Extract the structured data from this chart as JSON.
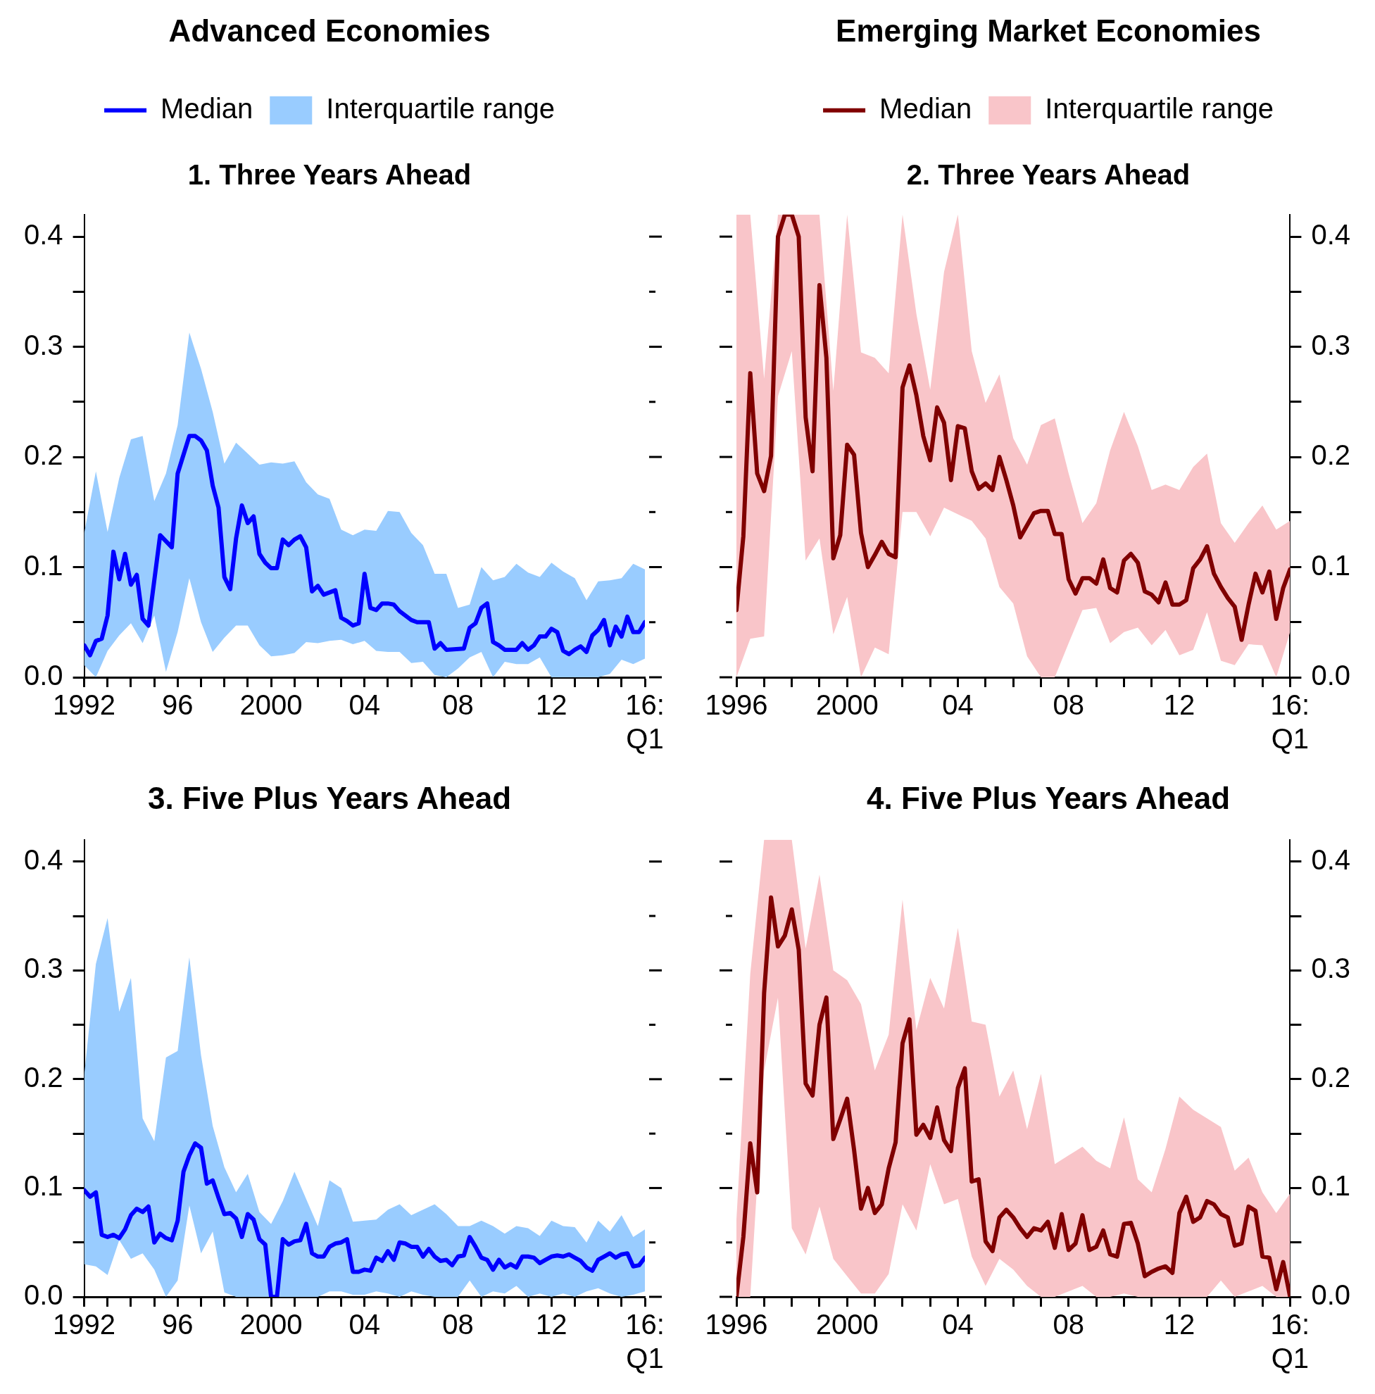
{
  "chart_data": [
    {
      "type": "line",
      "title": "Advanced Economies",
      "subtitle": "1. Three Years Ahead",
      "legend": "top",
      "marker": "none",
      "xlim": [
        1992,
        2016
      ],
      "xticks": [
        1992,
        {
          "value": 1993,
          "label": null
        },
        {
          "value": 1994,
          "label": null
        },
        {
          "value": 1995,
          "label": null
        },
        {
          "value": 1996,
          "label": "96"
        },
        {
          "value": 1997,
          "label": null
        },
        {
          "value": 1998,
          "label": null
        },
        {
          "value": 1999,
          "label": null
        },
        2000,
        {
          "value": 2001,
          "label": null
        },
        {
          "value": 2002,
          "label": null
        },
        {
          "value": 2003,
          "label": null
        },
        {
          "value": 2004,
          "label": "04"
        },
        {
          "value": 2005,
          "label": null
        },
        {
          "value": 2006,
          "label": null
        },
        {
          "value": 2007,
          "label": null
        },
        {
          "value": 2008,
          "label": "08"
        },
        {
          "value": 2009,
          "label": null
        },
        {
          "value": 2010,
          "label": null
        },
        {
          "value": 2011,
          "label": null
        },
        {
          "value": 2012,
          "label": "12"
        },
        {
          "value": 2013,
          "label": null
        },
        {
          "value": 2014,
          "label": null
        },
        {
          "value": 2015,
          "label": null
        },
        {
          "value": 2016,
          "label": "16:Q1"
        }
      ],
      "ylim": [
        0,
        0.42
      ],
      "yticks": [
        {
          "value": 0,
          "label": "0.0"
        },
        {
          "value": 0.05,
          "label": null
        },
        0.1,
        {
          "value": 0.15,
          "label": null
        },
        0.2,
        {
          "value": 0.25,
          "label": null
        },
        0.3,
        {
          "value": 0.35,
          "label": null
        },
        0.4
      ],
      "series": [
        {
          "name": "Median",
          "color": "#0000ff",
          "x": [
            1992,
            1992.25,
            1992.5,
            1992.75,
            1993,
            1993.25,
            1993.5,
            1993.75,
            1994,
            1994.25,
            1994.5,
            1994.75,
            1995.25,
            1995.75,
            1996,
            1996.5,
            1996.75,
            1997,
            1997.25,
            1997.5,
            1997.75,
            1998,
            1998.25,
            1998.5,
            1998.75,
            1999,
            1999.25,
            1999.5,
            1999.75,
            2000,
            2000.25,
            2000.5,
            2000.75,
            2001,
            2001.25,
            2001.5,
            2001.75,
            2002,
            2002.25,
            2002.75,
            2003,
            2003.25,
            2003.5,
            2003.75,
            2004,
            2004.25,
            2004.5,
            2004.75,
            2005,
            2005.25,
            2005.5,
            2006,
            2006.25,
            2006.75,
            2007,
            2007.25,
            2007.5,
            2008.25,
            2008.5,
            2008.75,
            2009,
            2009.25,
            2009.5,
            2009.75,
            2010,
            2010.5,
            2010.75,
            2011,
            2011.25,
            2011.5,
            2011.75,
            2012,
            2012.25,
            2012.5,
            2012.75,
            2013,
            2013.25,
            2013.5,
            2013.75,
            2014,
            2014.25,
            2014.5,
            2014.75,
            2015,
            2015.25,
            2015.5,
            2015.75,
            2016
          ],
          "values": [
            0.029,
            0.02,
            0.033,
            0.035,
            0.056,
            0.114,
            0.089,
            0.112,
            0.084,
            0.093,
            0.053,
            0.047,
            0.129,
            0.118,
            0.185,
            0.219,
            0.219,
            0.215,
            0.206,
            0.174,
            0.154,
            0.091,
            0.08,
            0.126,
            0.156,
            0.14,
            0.146,
            0.112,
            0.104,
            0.099,
            0.099,
            0.125,
            0.12,
            0.125,
            0.128,
            0.118,
            0.078,
            0.083,
            0.075,
            0.079,
            0.054,
            0.051,
            0.047,
            0.049,
            0.094,
            0.063,
            0.061,
            0.067,
            0.067,
            0.066,
            0.06,
            0.052,
            0.05,
            0.05,
            0.026,
            0.031,
            0.025,
            0.026,
            0.045,
            0.049,
            0.063,
            0.067,
            0.032,
            0.029,
            0.025,
            0.025,
            0.031,
            0.025,
            0.029,
            0.037,
            0.037,
            0.044,
            0.041,
            0.024,
            0.021,
            0.025,
            0.028,
            0.023,
            0.038,
            0.043,
            0.052,
            0.029,
            0.046,
            0.037,
            0.055,
            0.041,
            0.041,
            0.05
          ]
        },
        {
          "name": "Interquartile range",
          "type": "area",
          "color": "#99ccff",
          "x": [
            1992,
            1992.5,
            1993,
            1993.5,
            1994,
            1994.5,
            1995,
            1995.5,
            1996,
            1996.5,
            1997,
            1997.5,
            1998,
            1998.5,
            1999,
            1999.5,
            2000,
            2000.5,
            2001,
            2001.5,
            2002,
            2002.5,
            2003,
            2003.5,
            2004,
            2004.5,
            2005,
            2005.5,
            2006,
            2006.5,
            2007,
            2007.5,
            2008,
            2008.5,
            2009,
            2009.5,
            2010,
            2010.5,
            2011,
            2011.5,
            2012,
            2012.5,
            2013,
            2013.5,
            2014,
            2014.5,
            2015,
            2015.5,
            2016
          ],
          "values": [
            null,
            null,
            null,
            null,
            null,
            null,
            null,
            null,
            null,
            null,
            null,
            null,
            null,
            null,
            null,
            null,
            null,
            null,
            null,
            null,
            null,
            null,
            null,
            null,
            null,
            null,
            null,
            null,
            null,
            null,
            null,
            null,
            null,
            null,
            null,
            null,
            null,
            null,
            null,
            null,
            null,
            null,
            null,
            null,
            null,
            null,
            null,
            null,
            null
          ],
          "upper": [
            0.131,
            0.187,
            0.132,
            0.181,
            0.216,
            0.219,
            0.16,
            0.185,
            0.229,
            0.313,
            0.28,
            0.241,
            0.194,
            0.213,
            0.203,
            0.193,
            0.195,
            0.194,
            0.196,
            0.177,
            0.166,
            0.162,
            0.134,
            0.129,
            0.134,
            0.133,
            0.151,
            0.15,
            0.131,
            0.12,
            0.094,
            0.094,
            0.063,
            0.066,
            0.1,
            0.088,
            0.091,
            0.103,
            0.095,
            0.091,
            0.104,
            0.096,
            0.09,
            0.07,
            0.087,
            0.088,
            0.09,
            0.103,
            0.098
          ],
          "lower": [
            0.011,
            0,
            0.024,
            0.038,
            0.049,
            0.031,
            0.056,
            0.005,
            0.041,
            0.09,
            0.05,
            0.023,
            0.036,
            0.047,
            0.047,
            0.029,
            0.019,
            0.02,
            0.022,
            0.032,
            0.031,
            0.033,
            0.034,
            0.03,
            0.033,
            0.024,
            0.023,
            0.023,
            0.013,
            0.014,
            0.002,
            0,
            0.008,
            0.018,
            0.023,
            0,
            0.014,
            0.012,
            0.012,
            0.018,
            0,
            0,
            0,
            0,
            0,
            0.003,
            0.016,
            0.012,
            0.017
          ]
        }
      ]
    },
    {
      "type": "line",
      "title": "Emerging Market Economies",
      "subtitle": "2. Three Years Ahead",
      "legend": "top",
      "marker": "none",
      "xlim": [
        1996,
        2016
      ],
      "xticks": [
        1996,
        {
          "value": 1997,
          "label": null
        },
        {
          "value": 1998,
          "label": null
        },
        {
          "value": 1999,
          "label": null
        },
        2000,
        {
          "value": 2001,
          "label": null
        },
        {
          "value": 2002,
          "label": null
        },
        {
          "value": 2003,
          "label": null
        },
        {
          "value": 2004,
          "label": "04"
        },
        {
          "value": 2005,
          "label": null
        },
        {
          "value": 2006,
          "label": null
        },
        {
          "value": 2007,
          "label": null
        },
        {
          "value": 2008,
          "label": "08"
        },
        {
          "value": 2009,
          "label": null
        },
        {
          "value": 2010,
          "label": null
        },
        {
          "value": 2011,
          "label": null
        },
        {
          "value": 2012,
          "label": "12"
        },
        {
          "value": 2013,
          "label": null
        },
        {
          "value": 2014,
          "label": null
        },
        {
          "value": 2015,
          "label": null
        },
        {
          "value": 2016,
          "label": "16:Q1"
        }
      ],
      "y2lim": [
        0,
        0.42
      ],
      "y2ticks": [
        {
          "value": 0,
          "label": "0.0"
        },
        {
          "value": 0.05,
          "label": null
        },
        0.1,
        {
          "value": 0.15,
          "label": null
        },
        0.2,
        {
          "value": 0.25,
          "label": null
        },
        0.3,
        {
          "value": 0.35,
          "label": null
        },
        0.4
      ],
      "series": [
        {
          "name": "Median",
          "color": "#800000",
          "axis": "y2",
          "x": [
            1996,
            1996.25,
            1996.5,
            1996.75,
            1997,
            1997.25,
            1997.5,
            1997.75,
            1998,
            1998.25,
            1998.5,
            1998.75,
            1999,
            1999.25,
            1999.5,
            1999.75,
            2000,
            2000.25,
            2000.5,
            2000.75,
            2001,
            2001.25,
            2001.5,
            2001.75,
            2002,
            2002.25,
            2002.5,
            2002.75,
            2003,
            2003.25,
            2003.5,
            2003.75,
            2004,
            2004.25,
            2004.5,
            2004.75,
            2005,
            2005.25,
            2005.5,
            2005.75,
            2006,
            2006.25,
            2006.5,
            2006.75,
            2007,
            2007.25,
            2007.5,
            2007.75,
            2008,
            2008.25,
            2008.5,
            2008.75,
            2009,
            2009.25,
            2009.5,
            2009.75,
            2010,
            2010.25,
            2010.5,
            2010.75,
            2011,
            2011.25,
            2011.5,
            2011.75,
            2012,
            2012.25,
            2012.5,
            2012.75,
            2013,
            2013.25,
            2013.5,
            2013.75,
            2014,
            2014.25,
            2014.5,
            2014.75,
            2015,
            2015.25,
            2015.5,
            2015.75,
            2016
          ],
          "values": [
            0.061,
            0.128,
            0.276,
            0.185,
            0.169,
            0.201,
            0.4,
            0.42,
            0.42,
            0.4,
            0.236,
            0.187,
            0.356,
            0.29,
            0.108,
            0.129,
            0.211,
            0.202,
            0.131,
            0.1,
            0.111,
            0.123,
            0.112,
            0.109,
            0.263,
            0.283,
            0.256,
            0.219,
            0.197,
            0.245,
            0.231,
            0.179,
            0.228,
            0.226,
            0.187,
            0.171,
            0.176,
            0.17,
            0.2,
            0.179,
            0.156,
            0.127,
            0.138,
            0.149,
            0.151,
            0.151,
            0.13,
            0.13,
            0.089,
            0.076,
            0.09,
            0.09,
            0.085,
            0.107,
            0.081,
            0.077,
            0.106,
            0.112,
            0.104,
            0.078,
            0.075,
            0.068,
            0.086,
            0.066,
            0.066,
            0.07,
            0.099,
            0.107,
            0.119,
            0.094,
            0.082,
            0.072,
            0.064,
            0.034,
            0.066,
            0.094,
            0.077,
            0.096,
            0.053,
            0.081,
            0.098
          ]
        },
        {
          "name": "Interquartile range",
          "type": "area",
          "color": "#f9c5c9",
          "axis": "y2",
          "x": [
            1996,
            1996.5,
            1997,
            1997.5,
            1998,
            1998.5,
            1999,
            1999.5,
            2000,
            2000.5,
            2001,
            2001.5,
            2002,
            2002.5,
            2003,
            2003.5,
            2004,
            2004.5,
            2005,
            2005.5,
            2006,
            2006.5,
            2007,
            2007.5,
            2008,
            2008.5,
            2009,
            2009.5,
            2010,
            2010.5,
            2011,
            2011.5,
            2012,
            2012.5,
            2013,
            2013.5,
            2014,
            2014.5,
            2015,
            2015.5,
            2016
          ],
          "values": [
            null,
            null,
            null,
            null,
            null,
            null,
            null,
            null,
            null,
            null,
            null,
            null,
            null,
            null,
            null,
            null,
            null,
            null,
            null,
            null,
            null,
            null,
            null,
            null,
            null,
            null,
            null,
            null,
            null,
            null,
            null,
            null,
            null,
            null,
            null,
            null,
            null,
            null,
            null,
            null,
            null
          ],
          "upper": [
            0.42,
            0.42,
            0.271,
            0.42,
            0.42,
            0.42,
            0.42,
            0.26,
            0.42,
            0.295,
            0.29,
            0.276,
            0.42,
            0.33,
            0.261,
            0.368,
            0.42,
            0.296,
            0.249,
            0.275,
            0.217,
            0.193,
            0.229,
            0.235,
            0.185,
            0.14,
            0.158,
            0.206,
            0.241,
            0.21,
            0.17,
            0.175,
            0.17,
            0.191,
            0.203,
            0.14,
            0.122,
            0.14,
            0.156,
            0.134,
            0.142
          ],
          "lower": [
            0,
            0.035,
            0.037,
            0.255,
            0.296,
            0.106,
            0.126,
            0.039,
            0.073,
            0,
            0.027,
            0.021,
            0.15,
            0.15,
            0.128,
            0.154,
            0.148,
            0.142,
            0.126,
            0.082,
            0.067,
            0.019,
            0,
            0,
            0.031,
            0.061,
            0.063,
            0.031,
            0.041,
            0.045,
            0.029,
            0.043,
            0.02,
            0.025,
            0.059,
            0.015,
            0.011,
            0.03,
            0.029,
            0,
            0.041
          ]
        }
      ]
    },
    {
      "type": "line",
      "title": "3. Five Plus Years Ahead",
      "legend": false,
      "marker": "none",
      "xlim": [
        1992,
        2016
      ],
      "xticks": [
        1992,
        {
          "value": 1993,
          "label": null
        },
        {
          "value": 1994,
          "label": null
        },
        {
          "value": 1995,
          "label": null
        },
        {
          "value": 1996,
          "label": "96"
        },
        {
          "value": 1997,
          "label": null
        },
        {
          "value": 1998,
          "label": null
        },
        {
          "value": 1999,
          "label": null
        },
        2000,
        {
          "value": 2001,
          "label": null
        },
        {
          "value": 2002,
          "label": null
        },
        {
          "value": 2003,
          "label": null
        },
        {
          "value": 2004,
          "label": "04"
        },
        {
          "value": 2005,
          "label": null
        },
        {
          "value": 2006,
          "label": null
        },
        {
          "value": 2007,
          "label": null
        },
        {
          "value": 2008,
          "label": "08"
        },
        {
          "value": 2009,
          "label": null
        },
        {
          "value": 2010,
          "label": null
        },
        {
          "value": 2011,
          "label": null
        },
        {
          "value": 2012,
          "label": "12"
        },
        {
          "value": 2013,
          "label": null
        },
        {
          "value": 2014,
          "label": null
        },
        {
          "value": 2015,
          "label": null
        },
        {
          "value": 2016,
          "label": "16:Q1"
        }
      ],
      "ylim": [
        0,
        0.42
      ],
      "yticks": [
        {
          "value": 0,
          "label": "0.0"
        },
        {
          "value": 0.05,
          "label": null
        },
        0.1,
        {
          "value": 0.15,
          "label": null
        },
        0.2,
        {
          "value": 0.25,
          "label": null
        },
        0.3,
        {
          "value": 0.35,
          "label": null
        },
        0.4
      ],
      "series": [
        {
          "color": "#0000ff",
          "x": [
            1992,
            1992.25,
            1992.5,
            1992.75,
            1993,
            1993.25,
            1993.5,
            1993.75,
            1994,
            1994.25,
            1994.5,
            1994.75,
            1995,
            1995.25,
            1995.5,
            1995.75,
            1996,
            1996.25,
            1996.5,
            1996.75,
            1997,
            1997.25,
            1997.5,
            1997.75,
            1998,
            1998.25,
            1998.5,
            1998.75,
            1999,
            1999.25,
            1999.5,
            1999.75,
            2000,
            2000.25,
            2000.5,
            2000.75,
            2001,
            2001.25,
            2001.5,
            2001.75,
            2002,
            2002.25,
            2002.5,
            2002.75,
            2003,
            2003.25,
            2003.5,
            2003.75,
            2004,
            2004.25,
            2004.5,
            2004.75,
            2005,
            2005.25,
            2005.5,
            2005.75,
            2006,
            2006.25,
            2006.5,
            2006.75,
            2007,
            2007.25,
            2007.5,
            2007.75,
            2008,
            2008.25,
            2008.5,
            2008.75,
            2009,
            2009.25,
            2009.5,
            2009.75,
            2010,
            2010.25,
            2010.5,
            2010.75,
            2011,
            2011.25,
            2011.5,
            2011.75,
            2012,
            2012.25,
            2012.5,
            2012.75,
            2013,
            2013.25,
            2013.5,
            2013.75,
            2014,
            2014.25,
            2014.5,
            2014.75,
            2015,
            2015.25,
            2015.5,
            2015.75,
            2016
          ],
          "values": [
            0.098,
            0.092,
            0.096,
            0.057,
            0.055,
            0.057,
            0.054,
            0.062,
            0.075,
            0.081,
            0.078,
            0.083,
            0.05,
            0.058,
            0.054,
            0.052,
            0.07,
            0.115,
            0.13,
            0.141,
            0.137,
            0.104,
            0.107,
            0.091,
            0.076,
            0.077,
            0.072,
            0.055,
            0.076,
            0.071,
            0.053,
            0.048,
            0,
            0,
            0.053,
            0.048,
            0.051,
            0.052,
            0.067,
            0.04,
            0.037,
            0.037,
            0.046,
            0.049,
            0.05,
            0.053,
            0.023,
            0.023,
            0.025,
            0.024,
            0.036,
            0.033,
            0.042,
            0.034,
            0.05,
            0.049,
            0.046,
            0.046,
            0.037,
            0.044,
            0.037,
            0.033,
            0.034,
            0.029,
            0.037,
            0.038,
            0.055,
            0.046,
            0.036,
            0.034,
            0.025,
            0.034,
            0.027,
            0.03,
            0.027,
            0.037,
            0.037,
            0.036,
            0.031,
            0.034,
            0.037,
            0.038,
            0.037,
            0.039,
            0.036,
            0.033,
            0.027,
            0.024,
            0.034,
            0.037,
            0.04,
            0.036,
            0.039,
            0.04,
            0.028,
            0.029,
            0.036
          ]
        },
        {
          "type": "area",
          "color": "#99ccff",
          "x": [
            1992,
            1992.5,
            1993,
            1993.5,
            1994,
            1994.5,
            1995,
            1995.5,
            1996,
            1996.5,
            1997,
            1997.5,
            1998,
            1998.5,
            1999,
            1999.5,
            2000,
            2000.5,
            2001,
            2001.5,
            2002,
            2002.5,
            2003,
            2003.5,
            2004,
            2004.5,
            2005,
            2005.5,
            2006,
            2006.5,
            2007,
            2007.5,
            2008,
            2008.5,
            2009,
            2009.5,
            2010,
            2010.5,
            2011,
            2011.5,
            2012,
            2012.5,
            2013,
            2013.5,
            2014,
            2014.5,
            2015,
            2015.5,
            2016
          ],
          "values": [
            null,
            null,
            null,
            null,
            null,
            null,
            null,
            null,
            null,
            null,
            null,
            null,
            null,
            null,
            null,
            null,
            null,
            null,
            null,
            null,
            null,
            null,
            null,
            null,
            null,
            null,
            null,
            null,
            null,
            null,
            null,
            null,
            null,
            null,
            null,
            null,
            null,
            null,
            null,
            null,
            null,
            null,
            null,
            null,
            null,
            null,
            null,
            null,
            null
          ],
          "upper": [
            0.204,
            0.306,
            0.348,
            0.262,
            0.293,
            0.164,
            0.143,
            0.22,
            0.226,
            0.312,
            0.222,
            0.157,
            0.119,
            0.096,
            0.113,
            0.078,
            0.067,
            0.088,
            0.115,
            0.09,
            0.065,
            0.107,
            0.1,
            0.069,
            0.07,
            0.071,
            0.08,
            0.085,
            0.075,
            0.08,
            0.085,
            0.076,
            0.065,
            0.065,
            0.07,
            0.065,
            0.058,
            0.065,
            0.063,
            0.056,
            0.07,
            0.065,
            0.064,
            0.05,
            0.07,
            0.06,
            0.075,
            0.055,
            0.062
          ],
          "lower": [
            0.03,
            0.028,
            0.02,
            0.052,
            0.035,
            0.04,
            0.025,
            0,
            0.015,
            0.084,
            0.04,
            0.06,
            0.004,
            0,
            0,
            0,
            0,
            0,
            0,
            0,
            0,
            0.005,
            0.005,
            0.002,
            0.002,
            0.005,
            0.003,
            0,
            0.005,
            0.002,
            0,
            0,
            0,
            0.015,
            0,
            0.005,
            0.003,
            0.01,
            0,
            0.003,
            0,
            0.003,
            0,
            0.005,
            0.008,
            0.003,
            0,
            0.002,
            0.005
          ]
        }
      ]
    },
    {
      "type": "line",
      "title": "4. Five Plus Years Ahead",
      "legend": false,
      "marker": "none",
      "xlim": [
        1996,
        2016
      ],
      "xticks": [
        1996,
        {
          "value": 1997,
          "label": null
        },
        {
          "value": 1998,
          "label": null
        },
        {
          "value": 1999,
          "label": null
        },
        2000,
        {
          "value": 2001,
          "label": null
        },
        {
          "value": 2002,
          "label": null
        },
        {
          "value": 2003,
          "label": null
        },
        {
          "value": 2004,
          "label": "04"
        },
        {
          "value": 2005,
          "label": null
        },
        {
          "value": 2006,
          "label": null
        },
        {
          "value": 2007,
          "label": null
        },
        {
          "value": 2008,
          "label": "08"
        },
        {
          "value": 2009,
          "label": null
        },
        {
          "value": 2010,
          "label": null
        },
        {
          "value": 2011,
          "label": null
        },
        {
          "value": 2012,
          "label": "12"
        },
        {
          "value": 2013,
          "label": null
        },
        {
          "value": 2014,
          "label": null
        },
        {
          "value": 2015,
          "label": null
        },
        {
          "value": 2016,
          "label": "16:Q1"
        }
      ],
      "y2lim": [
        0,
        0.42
      ],
      "y2ticks": [
        {
          "value": 0,
          "label": "0.0"
        },
        {
          "value": 0.05,
          "label": null
        },
        0.1,
        {
          "value": 0.15,
          "label": null
        },
        0.2,
        {
          "value": 0.25,
          "label": null
        },
        0.3,
        {
          "value": 0.35,
          "label": null
        },
        0.4
      ],
      "series": [
        {
          "color": "#800000",
          "axis": "y2",
          "x": [
            1996,
            1996.25,
            1996.5,
            1996.75,
            1997,
            1997.25,
            1997.5,
            1997.75,
            1998,
            1998.25,
            1998.5,
            1998.75,
            1999,
            1999.25,
            1999.5,
            1999.75,
            2000,
            2000.25,
            2000.5,
            2000.75,
            2001,
            2001.25,
            2001.5,
            2001.75,
            2002,
            2002.25,
            2002.5,
            2002.75,
            2003,
            2003.25,
            2003.5,
            2003.75,
            2004,
            2004.25,
            2004.5,
            2004.75,
            2005,
            2005.25,
            2005.5,
            2005.75,
            2006,
            2006.25,
            2006.5,
            2006.75,
            2007,
            2007.25,
            2007.5,
            2007.75,
            2008,
            2008.25,
            2008.5,
            2008.75,
            2009,
            2009.25,
            2009.5,
            2009.75,
            2010,
            2010.25,
            2010.5,
            2010.75,
            2011,
            2011.25,
            2011.5,
            2011.75,
            2012,
            2012.25,
            2012.5,
            2012.75,
            2013,
            2013.25,
            2013.5,
            2013.75,
            2014,
            2014.25,
            2014.5,
            2014.75,
            2015,
            2015.25,
            2015.5,
            2015.75,
            2016
          ],
          "values": [
            0,
            0.055,
            0.141,
            0.096,
            0.279,
            0.367,
            0.322,
            0.332,
            0.356,
            0.319,
            0.196,
            0.185,
            0.25,
            0.275,
            0.145,
            0.163,
            0.182,
            0.135,
            0.081,
            0.1,
            0.077,
            0.085,
            0.118,
            0.142,
            0.233,
            0.255,
            0.149,
            0.158,
            0.146,
            0.174,
            0.144,
            0.134,
            0.192,
            0.21,
            0.106,
            0.108,
            0.051,
            0.042,
            0.073,
            0.08,
            0.073,
            0.063,
            0.055,
            0.063,
            0.061,
            0.069,
            0.045,
            0.076,
            0.043,
            0.049,
            0.075,
            0.043,
            0.046,
            0.061,
            0.039,
            0.037,
            0.067,
            0.068,
            0.049,
            0.019,
            0.023,
            0.026,
            0.028,
            0.022,
            0.077,
            0.092,
            0.069,
            0.073,
            0.088,
            0.085,
            0.076,
            0.073,
            0.047,
            0.049,
            0.083,
            0.079,
            0.037,
            0.036,
            0.007,
            0.032,
            0
          ]
        },
        {
          "type": "area",
          "color": "#f9c5c9",
          "axis": "y2",
          "x": [
            1996,
            1996.5,
            1997,
            1997.5,
            1998,
            1998.5,
            1999,
            1999.5,
            2000,
            2000.5,
            2001,
            2001.5,
            2002,
            2002.5,
            2003,
            2003.5,
            2004,
            2004.5,
            2005,
            2005.5,
            2006,
            2006.5,
            2007,
            2007.5,
            2008,
            2008.5,
            2009,
            2009.5,
            2010,
            2010.5,
            2011,
            2011.5,
            2012,
            2012.5,
            2013,
            2013.5,
            2014,
            2014.5,
            2015,
            2015.5,
            2016
          ],
          "values": [
            null,
            null,
            null,
            null,
            null,
            null,
            null,
            null,
            null,
            null,
            null,
            null,
            null,
            null,
            null,
            null,
            null,
            null,
            null,
            null,
            null,
            null,
            null,
            null,
            null,
            null,
            null,
            null,
            null,
            null,
            null,
            null,
            null,
            null,
            null,
            null,
            null,
            null,
            null,
            null,
            null
          ],
          "upper": [
            0.071,
            0.297,
            0.42,
            0.42,
            0.42,
            0.32,
            0.388,
            0.3,
            0.291,
            0.269,
            0.208,
            0.241,
            0.365,
            0.245,
            0.293,
            0.265,
            0.339,
            0.253,
            0.25,
            0.184,
            0.208,
            0.154,
            0.205,
            0.122,
            0.13,
            0.138,
            0.125,
            0.118,
            0.165,
            0.108,
            0.096,
            0.136,
            0.184,
            0.172,
            0.164,
            0.156,
            0.116,
            0.128,
            0.096,
            0.077,
            0.095
          ],
          "lower": [
            0,
            0,
            0.208,
            0.275,
            0.063,
            0.039,
            0.083,
            0.035,
            0.019,
            0.003,
            0.003,
            0.021,
            0.085,
            0.061,
            0.122,
            0.085,
            0.09,
            0.037,
            0.01,
            0.035,
            0.025,
            0.01,
            0,
            0,
            0.005,
            0.01,
            0,
            0,
            0.003,
            0,
            0,
            0,
            0,
            0,
            0,
            0.015,
            0,
            0.005,
            0.01,
            0,
            0
          ]
        }
      ]
    }
  ]
}
